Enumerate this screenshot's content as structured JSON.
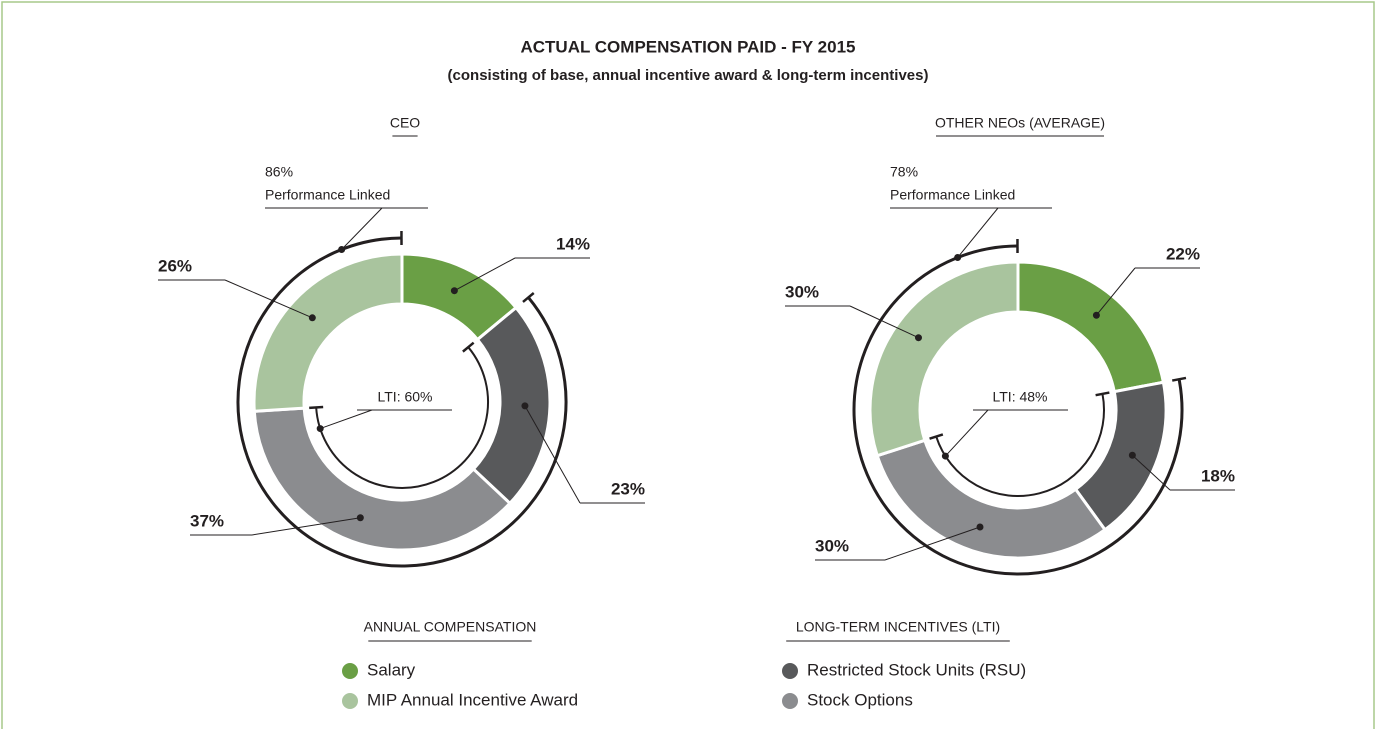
{
  "title": "ACTUAL COMPENSATION PAID - FY 2015",
  "subtitle": "(consisting of base, annual incentive award & long-term incentives)",
  "legend": {
    "groups": [
      {
        "title": "ANNUAL COMPENSATION",
        "items": [
          {
            "name": "Salary",
            "color": "#6a9f45"
          },
          {
            "name": "MIP Annual Incentive Award",
            "color": "#a9c49e"
          }
        ]
      },
      {
        "title": "LONG-TERM INCENTIVES (LTI)",
        "items": [
          {
            "name": "Restricted Stock Units (RSU)",
            "color": "#58595b"
          },
          {
            "name": "Stock Options",
            "color": "#8b8c8f"
          }
        ]
      }
    ]
  },
  "chart_data": [
    {
      "type": "donut",
      "title": "CEO",
      "values": [
        14,
        26,
        23,
        37
      ],
      "value_labels": [
        "14%",
        "26%",
        "23%",
        "37%"
      ],
      "performance_linked": 86,
      "performance_linked_value_label": "86%",
      "performance_linked_text": "Performance Linked",
      "lti": 60,
      "lti_label": "LTI: 60%"
    },
    {
      "type": "donut",
      "title": "OTHER NEOs (AVERAGE)",
      "values": [
        22,
        30,
        18,
        30
      ],
      "value_labels": [
        "22%",
        "30%",
        "18%",
        "30%"
      ],
      "performance_linked": 78,
      "performance_linked_value_label": "78%",
      "performance_linked_text": "Performance Linked",
      "lti": 48,
      "lti_label": "LTI: 48%"
    }
  ]
}
